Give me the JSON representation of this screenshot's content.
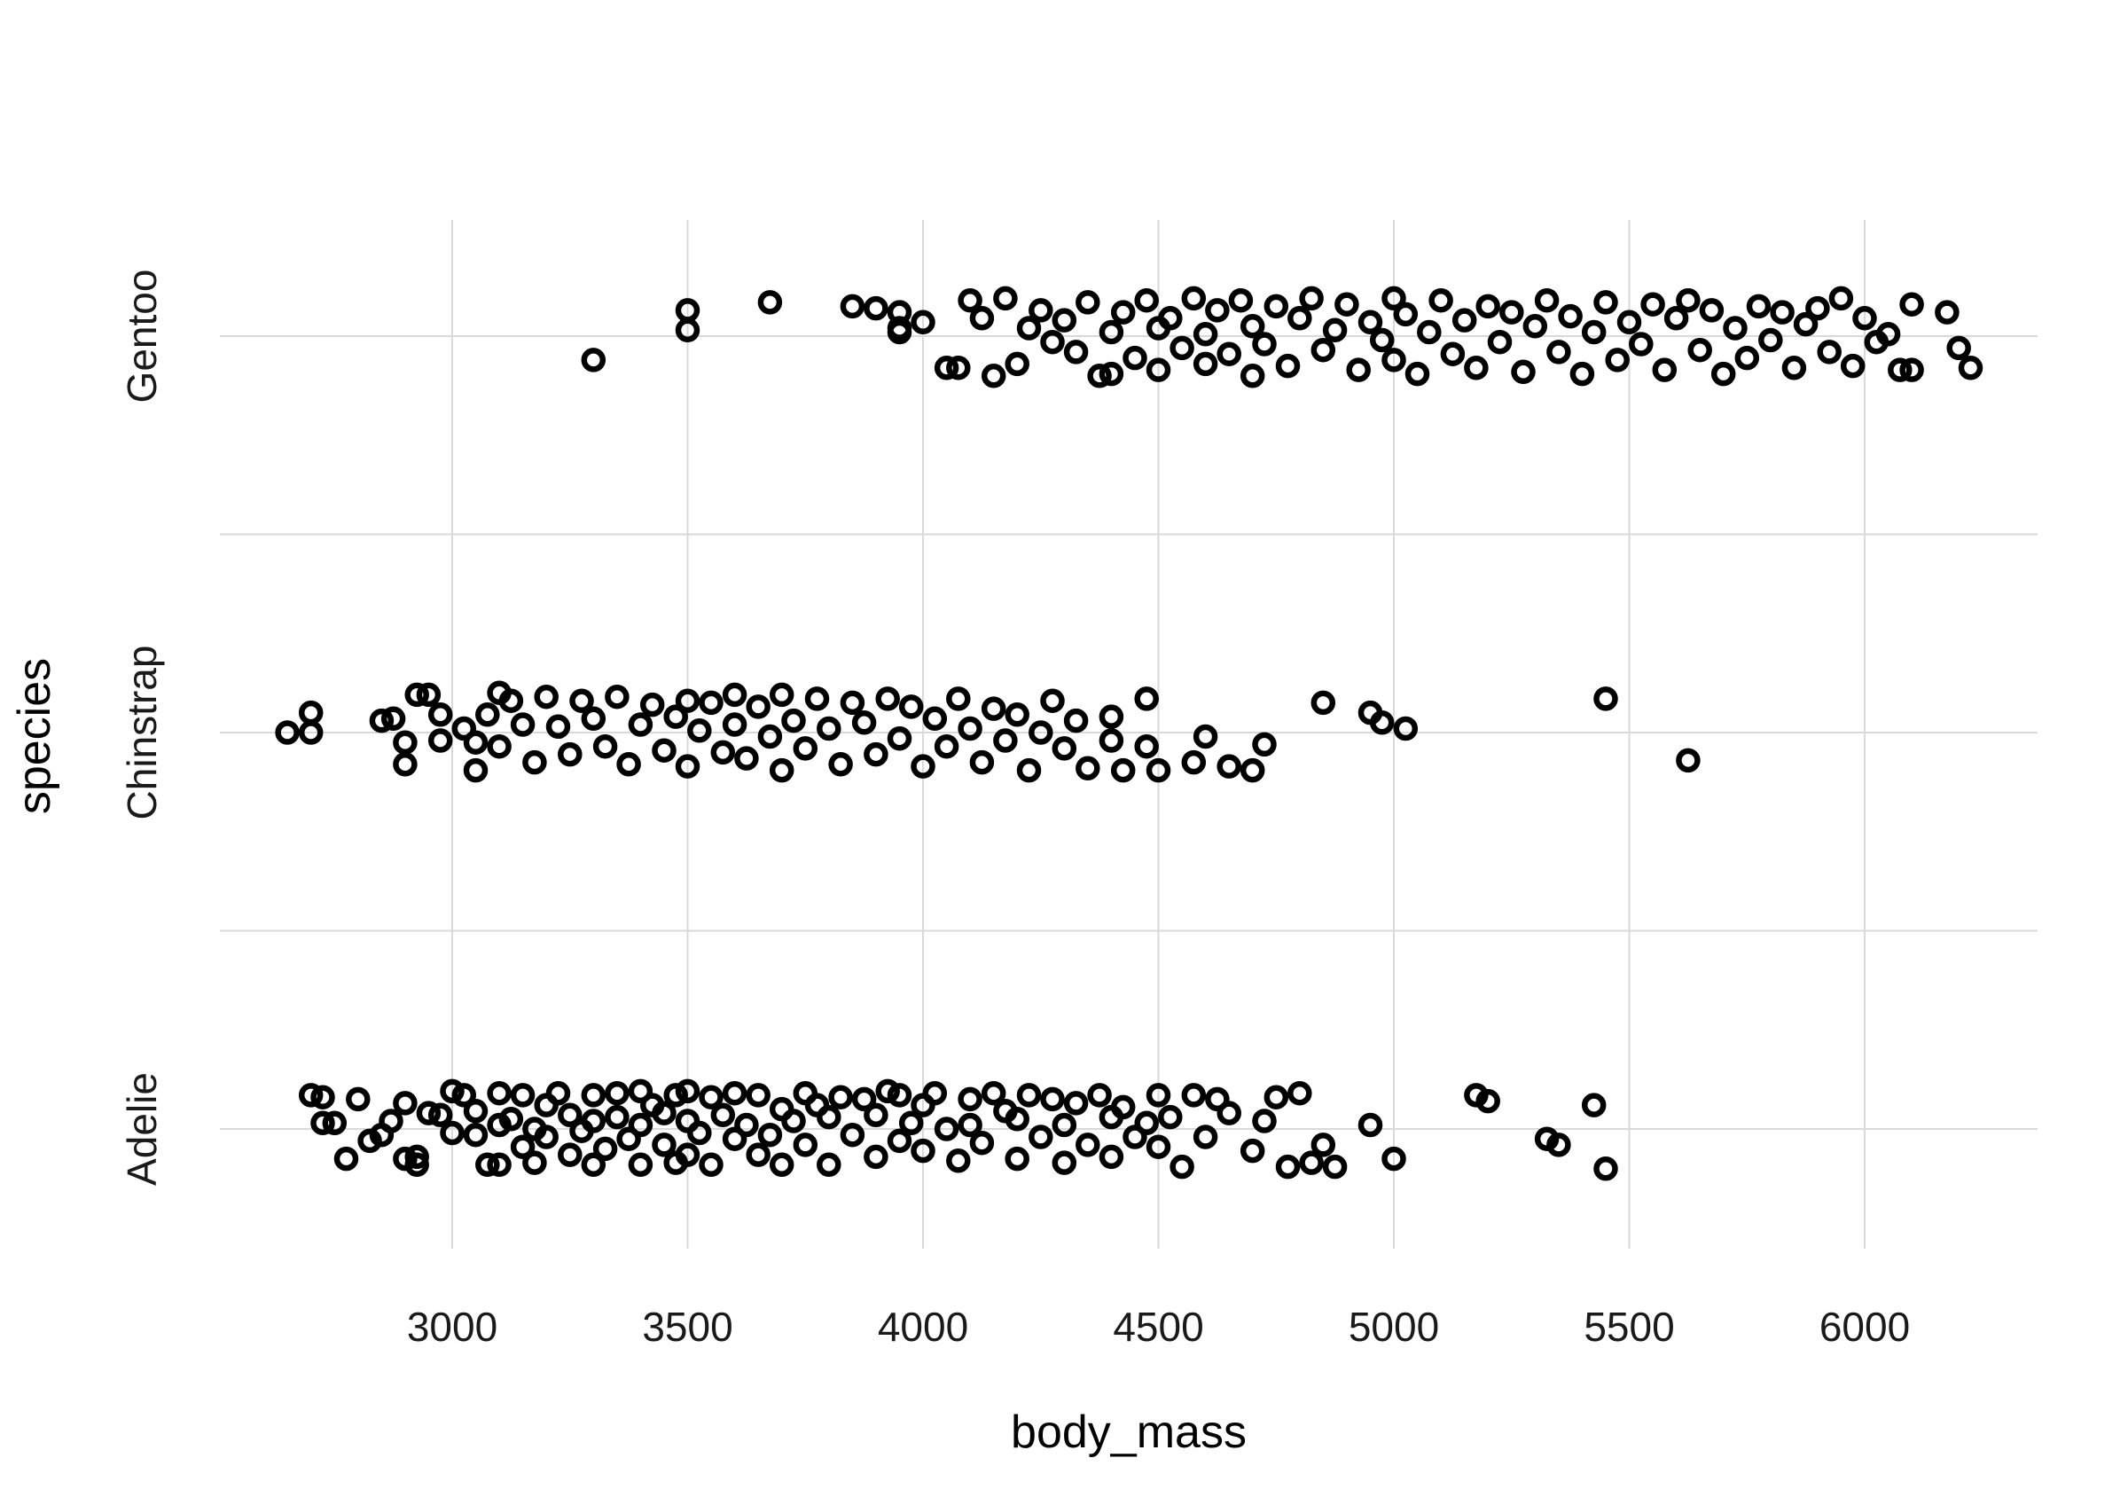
{
  "chart_data": {
    "type": "scatter",
    "title": "",
    "xlabel": "body_mass",
    "ylabel": "species",
    "xlim": [
      2520,
      6380
    ],
    "xticks": [
      3000,
      3500,
      4000,
      4500,
      5000,
      5500,
      6000
    ],
    "categories": [
      "Adelie",
      "Chinstrap",
      "Gentoo"
    ],
    "grid": true,
    "point_style": "open-circle",
    "colors": {
      "points": "#000000",
      "grid": "#d9d9d9",
      "background": "#ffffff"
    },
    "series": [
      {
        "category": "Adelie",
        "points": [
          [
            2700,
            0.17
          ],
          [
            2725,
            0.16
          ],
          [
            2725,
            0.03
          ],
          [
            2750,
            0.03
          ],
          [
            2775,
            -0.15
          ],
          [
            2800,
            0.15
          ],
          [
            2825,
            -0.06
          ],
          [
            2850,
            -0.03
          ],
          [
            2870,
            0.04
          ],
          [
            2900,
            0.13
          ],
          [
            2900,
            -0.15
          ],
          [
            2925,
            -0.18
          ],
          [
            2925,
            -0.14
          ],
          [
            2950,
            0.08
          ],
          [
            2975,
            0.07
          ],
          [
            3000,
            0.19
          ],
          [
            3000,
            -0.02
          ],
          [
            3025,
            0.17
          ],
          [
            3050,
            0.09
          ],
          [
            3050,
            -0.03
          ],
          [
            3075,
            -0.18
          ],
          [
            3100,
            0.18
          ],
          [
            3100,
            0.02
          ],
          [
            3100,
            -0.18
          ],
          [
            3125,
            0.05
          ],
          [
            3150,
            -0.09
          ],
          [
            3150,
            0.17
          ],
          [
            3175,
            0.0
          ],
          [
            3175,
            -0.17
          ],
          [
            3200,
            0.12
          ],
          [
            3200,
            -0.04
          ],
          [
            3225,
            0.18
          ],
          [
            3250,
            0.07
          ],
          [
            3250,
            -0.13
          ],
          [
            3275,
            -0.01
          ],
          [
            3300,
            0.17
          ],
          [
            3300,
            0.04
          ],
          [
            3300,
            -0.18
          ],
          [
            3325,
            -0.1
          ],
          [
            3350,
            0.18
          ],
          [
            3350,
            0.06
          ],
          [
            3375,
            -0.05
          ],
          [
            3400,
            0.19
          ],
          [
            3400,
            0.02
          ],
          [
            3400,
            -0.18
          ],
          [
            3425,
            0.12
          ],
          [
            3450,
            -0.08
          ],
          [
            3450,
            0.08
          ],
          [
            3475,
            0.17
          ],
          [
            3475,
            -0.17
          ],
          [
            3500,
            0.19
          ],
          [
            3500,
            0.04
          ],
          [
            3500,
            -0.13
          ],
          [
            3525,
            -0.02
          ],
          [
            3550,
            0.16
          ],
          [
            3550,
            -0.18
          ],
          [
            3575,
            0.07
          ],
          [
            3600,
            -0.05
          ],
          [
            3600,
            0.18
          ],
          [
            3625,
            0.02
          ],
          [
            3650,
            0.17
          ],
          [
            3650,
            -0.13
          ],
          [
            3675,
            -0.03
          ],
          [
            3700,
            0.1
          ],
          [
            3700,
            -0.18
          ],
          [
            3725,
            0.04
          ],
          [
            3750,
            0.18
          ],
          [
            3750,
            -0.08
          ],
          [
            3775,
            0.12
          ],
          [
            3800,
            -0.18
          ],
          [
            3800,
            0.06
          ],
          [
            3825,
            0.16
          ],
          [
            3850,
            -0.03
          ],
          [
            3875,
            0.15
          ],
          [
            3900,
            -0.14
          ],
          [
            3900,
            0.07
          ],
          [
            3925,
            0.19
          ],
          [
            3950,
            -0.06
          ],
          [
            3950,
            0.17
          ],
          [
            3975,
            0.03
          ],
          [
            4000,
            0.12
          ],
          [
            4000,
            -0.11
          ],
          [
            4025,
            0.18
          ],
          [
            4050,
            0.0
          ],
          [
            4075,
            -0.16
          ],
          [
            4100,
            0.15
          ],
          [
            4100,
            0.02
          ],
          [
            4125,
            -0.07
          ],
          [
            4150,
            0.18
          ],
          [
            4175,
            0.09
          ],
          [
            4200,
            -0.15
          ],
          [
            4200,
            0.05
          ],
          [
            4225,
            0.17
          ],
          [
            4250,
            -0.04
          ],
          [
            4275,
            0.15
          ],
          [
            4300,
            0.02
          ],
          [
            4300,
            -0.17
          ],
          [
            4325,
            0.13
          ],
          [
            4350,
            -0.08
          ],
          [
            4375,
            0.17
          ],
          [
            4400,
            0.06
          ],
          [
            4400,
            -0.14
          ],
          [
            4425,
            0.11
          ],
          [
            4450,
            -0.04
          ],
          [
            4475,
            0.03
          ],
          [
            4500,
            0.17
          ],
          [
            4500,
            -0.09
          ],
          [
            4525,
            0.06
          ],
          [
            4550,
            -0.19
          ],
          [
            4575,
            0.17
          ],
          [
            4600,
            -0.04
          ],
          [
            4625,
            0.15
          ],
          [
            4650,
            0.08
          ],
          [
            4700,
            -0.11
          ],
          [
            4725,
            0.04
          ],
          [
            4750,
            0.16
          ],
          [
            4775,
            -0.19
          ],
          [
            4800,
            0.18
          ],
          [
            4825,
            -0.17
          ],
          [
            4850,
            -0.08
          ],
          [
            4875,
            -0.19
          ],
          [
            4950,
            0.02
          ],
          [
            5000,
            -0.15
          ],
          [
            5175,
            0.17
          ],
          [
            5200,
            0.14
          ],
          [
            5325,
            -0.05
          ],
          [
            5350,
            -0.08
          ],
          [
            5425,
            0.12
          ],
          [
            5450,
            -0.2
          ]
        ]
      },
      {
        "category": "Chinstrap",
        "points": [
          [
            2650,
            0.0
          ],
          [
            2700,
            0.1
          ],
          [
            2700,
            0.0
          ],
          [
            2850,
            0.06
          ],
          [
            2875,
            0.07
          ],
          [
            2900,
            -0.05
          ],
          [
            2900,
            -0.16
          ],
          [
            2925,
            0.19
          ],
          [
            2950,
            0.19
          ],
          [
            2975,
            0.09
          ],
          [
            2975,
            -0.04
          ],
          [
            3025,
            0.02
          ],
          [
            3050,
            -0.05
          ],
          [
            3050,
            -0.19
          ],
          [
            3075,
            0.09
          ],
          [
            3100,
            0.2
          ],
          [
            3100,
            -0.07
          ],
          [
            3125,
            0.16
          ],
          [
            3150,
            0.04
          ],
          [
            3175,
            -0.15
          ],
          [
            3200,
            0.18
          ],
          [
            3225,
            0.03
          ],
          [
            3250,
            -0.11
          ],
          [
            3275,
            0.16
          ],
          [
            3300,
            0.07
          ],
          [
            3325,
            -0.07
          ],
          [
            3350,
            0.18
          ],
          [
            3375,
            -0.16
          ],
          [
            3400,
            0.04
          ],
          [
            3425,
            0.14
          ],
          [
            3450,
            -0.09
          ],
          [
            3475,
            0.08
          ],
          [
            3500,
            -0.17
          ],
          [
            3500,
            0.16
          ],
          [
            3525,
            0.01
          ],
          [
            3550,
            0.15
          ],
          [
            3575,
            -0.1
          ],
          [
            3600,
            0.19
          ],
          [
            3600,
            0.04
          ],
          [
            3625,
            -0.13
          ],
          [
            3650,
            0.13
          ],
          [
            3675,
            -0.02
          ],
          [
            3700,
            0.19
          ],
          [
            3700,
            -0.19
          ],
          [
            3725,
            0.06
          ],
          [
            3750,
            -0.08
          ],
          [
            3775,
            0.17
          ],
          [
            3800,
            0.02
          ],
          [
            3825,
            -0.16
          ],
          [
            3850,
            0.15
          ],
          [
            3875,
            0.05
          ],
          [
            3900,
            -0.11
          ],
          [
            3925,
            0.17
          ],
          [
            3950,
            -0.03
          ],
          [
            3975,
            0.13
          ],
          [
            4000,
            -0.17
          ],
          [
            4025,
            0.07
          ],
          [
            4050,
            -0.07
          ],
          [
            4075,
            0.17
          ],
          [
            4100,
            0.02
          ],
          [
            4125,
            -0.15
          ],
          [
            4150,
            0.12
          ],
          [
            4175,
            -0.04
          ],
          [
            4200,
            0.09
          ],
          [
            4225,
            -0.19
          ],
          [
            4250,
            0.0
          ],
          [
            4275,
            0.16
          ],
          [
            4300,
            -0.08
          ],
          [
            4325,
            0.06
          ],
          [
            4350,
            -0.18
          ],
          [
            4400,
            -0.04
          ],
          [
            4400,
            0.08
          ],
          [
            4425,
            -0.19
          ],
          [
            4475,
            -0.07
          ],
          [
            4475,
            0.17
          ],
          [
            4500,
            -0.19
          ],
          [
            4575,
            -0.15
          ],
          [
            4600,
            -0.02
          ],
          [
            4650,
            -0.17
          ],
          [
            4700,
            -0.19
          ],
          [
            4725,
            -0.06
          ],
          [
            4850,
            0.15
          ],
          [
            4950,
            0.1
          ],
          [
            4975,
            0.05
          ],
          [
            5025,
            0.02
          ],
          [
            5450,
            0.17
          ],
          [
            5625,
            -0.14
          ]
        ]
      },
      {
        "category": "Gentoo",
        "points": [
          [
            3300,
            -0.12
          ],
          [
            3500,
            0.13
          ],
          [
            3500,
            0.03
          ],
          [
            3675,
            0.17
          ],
          [
            3850,
            0.15
          ],
          [
            3900,
            0.14
          ],
          [
            3950,
            0.12
          ],
          [
            3950,
            0.04
          ],
          [
            3950,
            0.02
          ],
          [
            4000,
            0.07
          ],
          [
            4050,
            -0.16
          ],
          [
            4075,
            -0.16
          ],
          [
            4100,
            0.18
          ],
          [
            4125,
            0.09
          ],
          [
            4150,
            -0.2
          ],
          [
            4175,
            0.19
          ],
          [
            4200,
            -0.14
          ],
          [
            4225,
            0.04
          ],
          [
            4250,
            0.13
          ],
          [
            4275,
            -0.03
          ],
          [
            4300,
            0.08
          ],
          [
            4325,
            -0.08
          ],
          [
            4350,
            0.17
          ],
          [
            4375,
            -0.2
          ],
          [
            4400,
            0.02
          ],
          [
            4400,
            -0.19
          ],
          [
            4425,
            0.12
          ],
          [
            4450,
            -0.11
          ],
          [
            4475,
            0.18
          ],
          [
            4500,
            0.04
          ],
          [
            4500,
            -0.17
          ],
          [
            4525,
            0.09
          ],
          [
            4550,
            -0.06
          ],
          [
            4575,
            0.19
          ],
          [
            4600,
            0.01
          ],
          [
            4600,
            -0.14
          ],
          [
            4625,
            0.13
          ],
          [
            4650,
            -0.09
          ],
          [
            4675,
            0.18
          ],
          [
            4700,
            -0.2
          ],
          [
            4700,
            0.05
          ],
          [
            4725,
            -0.04
          ],
          [
            4750,
            0.15
          ],
          [
            4775,
            -0.15
          ],
          [
            4800,
            0.09
          ],
          [
            4825,
            0.19
          ],
          [
            4850,
            -0.07
          ],
          [
            4875,
            0.03
          ],
          [
            4900,
            0.16
          ],
          [
            4925,
            -0.17
          ],
          [
            4950,
            0.07
          ],
          [
            4975,
            -0.02
          ],
          [
            5000,
            0.19
          ],
          [
            5000,
            -0.12
          ],
          [
            5025,
            0.11
          ],
          [
            5050,
            -0.19
          ],
          [
            5075,
            0.02
          ],
          [
            5100,
            0.18
          ],
          [
            5125,
            -0.09
          ],
          [
            5150,
            0.08
          ],
          [
            5175,
            -0.16
          ],
          [
            5200,
            0.15
          ],
          [
            5225,
            -0.03
          ],
          [
            5250,
            0.12
          ],
          [
            5275,
            -0.18
          ],
          [
            5300,
            0.05
          ],
          [
            5325,
            0.18
          ],
          [
            5350,
            -0.08
          ],
          [
            5375,
            0.1
          ],
          [
            5400,
            -0.19
          ],
          [
            5425,
            0.02
          ],
          [
            5450,
            0.17
          ],
          [
            5475,
            -0.12
          ],
          [
            5500,
            0.07
          ],
          [
            5525,
            -0.04
          ],
          [
            5550,
            0.16
          ],
          [
            5575,
            -0.17
          ],
          [
            5600,
            0.09
          ],
          [
            5625,
            0.18
          ],
          [
            5650,
            -0.07
          ],
          [
            5675,
            0.13
          ],
          [
            5700,
            -0.19
          ],
          [
            5725,
            0.04
          ],
          [
            5750,
            -0.11
          ],
          [
            5775,
            0.15
          ],
          [
            5800,
            -0.02
          ],
          [
            5825,
            0.12
          ],
          [
            5850,
            -0.16
          ],
          [
            5875,
            0.06
          ],
          [
            5900,
            0.14
          ],
          [
            5925,
            -0.08
          ],
          [
            5950,
            0.19
          ],
          [
            5975,
            -0.15
          ],
          [
            6000,
            0.09
          ],
          [
            6025,
            -0.03
          ],
          [
            6050,
            0.01
          ],
          [
            6075,
            -0.17
          ],
          [
            6100,
            -0.17
          ],
          [
            6100,
            0.16
          ],
          [
            6175,
            0.12
          ],
          [
            6200,
            -0.06
          ],
          [
            6225,
            -0.16
          ]
        ]
      }
    ]
  }
}
